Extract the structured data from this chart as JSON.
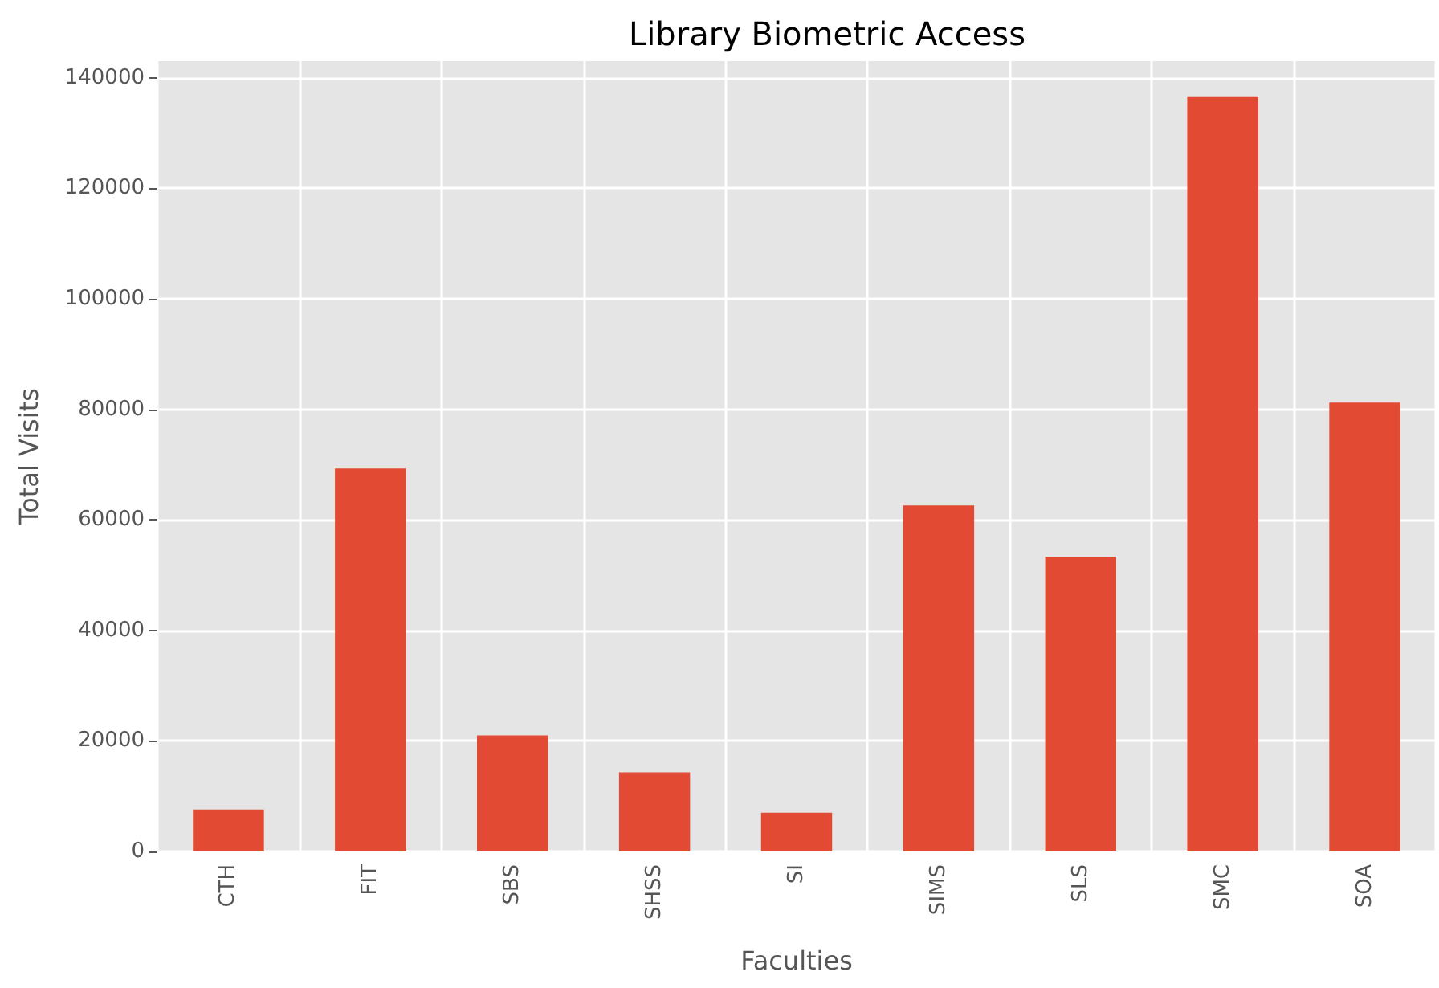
{
  "chart_data": {
    "type": "bar",
    "title": "Library Biometric Access",
    "xlabel": "Faculties",
    "ylabel": "Total Visits",
    "categories": [
      "CTH",
      "FIT",
      "SBS",
      "SHSS",
      "SI",
      "SIMS",
      "SLS",
      "SMC",
      "SOA"
    ],
    "values": [
      7600,
      69300,
      21000,
      14300,
      7000,
      62600,
      53300,
      136500,
      81200
    ],
    "color": "#e24a33",
    "ylim": [
      0,
      143000
    ],
    "yticks": [
      0,
      20000,
      40000,
      60000,
      80000,
      100000,
      120000,
      140000
    ],
    "grid": true
  }
}
